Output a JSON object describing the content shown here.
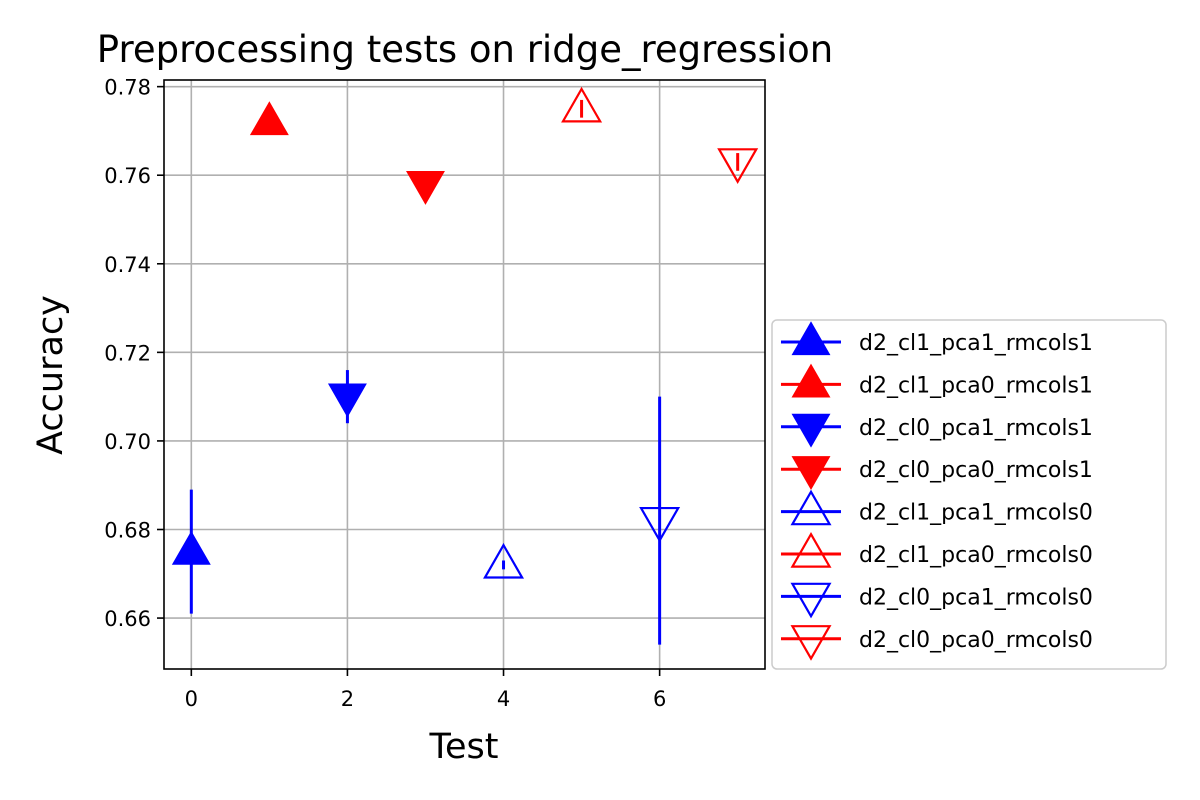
{
  "chart_data": {
    "type": "scatter",
    "title": "Preprocessing tests on ridge_regression",
    "xlabel": "Test",
    "ylabel": "Accuracy",
    "xlim": [
      -0.35,
      7.35
    ],
    "ylim": [
      0.6485,
      0.7815
    ],
    "xticks": [
      0,
      2,
      4,
      6
    ],
    "xtick_labels": [
      "0",
      "2",
      "4",
      "6"
    ],
    "yticks": [
      0.66,
      0.68,
      0.7,
      0.72,
      0.74,
      0.76,
      0.78
    ],
    "ytick_labels": [
      "0.66",
      "0.68",
      "0.70",
      "0.72",
      "0.74",
      "0.76",
      "0.78"
    ],
    "grid": true,
    "legend_position": "lower-right, outside plot",
    "series": [
      {
        "name": "d2_cl1_pca1_rmcols1",
        "color": "#0000ff",
        "marker": "triangle-up",
        "filled": true,
        "x": 0,
        "y": 0.675,
        "yerr": 0.014
      },
      {
        "name": "d2_cl1_pca0_rmcols1",
        "color": "#ff0000",
        "marker": "triangle-up",
        "filled": true,
        "x": 1,
        "y": 0.772,
        "yerr": 0.0005
      },
      {
        "name": "d2_cl0_pca1_rmcols1",
        "color": "#0000ff",
        "marker": "triangle-down",
        "filled": true,
        "x": 2,
        "y": 0.71,
        "yerr": 0.006
      },
      {
        "name": "d2_cl0_pca0_rmcols1",
        "color": "#ff0000",
        "marker": "triangle-down",
        "filled": true,
        "x": 3,
        "y": 0.758,
        "yerr": 0.0005
      },
      {
        "name": "d2_cl1_pca1_rmcols0",
        "color": "#0000ff",
        "marker": "triangle-up",
        "filled": false,
        "x": 4,
        "y": 0.672,
        "yerr": 0.001
      },
      {
        "name": "d2_cl1_pca0_rmcols0",
        "color": "#ff0000",
        "marker": "triangle-up",
        "filled": false,
        "x": 5,
        "y": 0.775,
        "yerr": 0.002
      },
      {
        "name": "d2_cl0_pca1_rmcols0",
        "color": "#0000ff",
        "marker": "triangle-down",
        "filled": false,
        "x": 6,
        "y": 0.682,
        "yerr": 0.028
      },
      {
        "name": "d2_cl0_pca0_rmcols0",
        "color": "#ff0000",
        "marker": "triangle-down",
        "filled": false,
        "x": 7,
        "y": 0.763,
        "yerr": 0.002
      }
    ]
  }
}
